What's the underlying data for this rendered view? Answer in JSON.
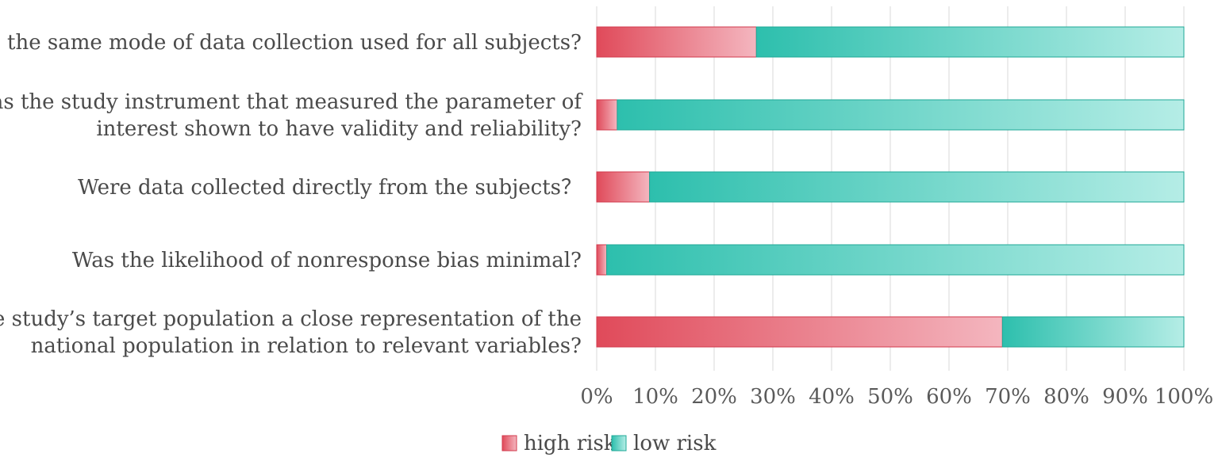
{
  "chart_data": {
    "type": "bar",
    "orientation": "horizontal",
    "stacked": "percent",
    "categories": [
      [
        "Was the same mode of data collection used for all subjects?"
      ],
      [
        "Was the study instrument that measured the parameter of",
        "interest shown to have validity and reliability?"
      ],
      [
        "Were data collected directly from the subjects？"
      ],
      [
        "Was the likelihood of nonresponse bias minimal?"
      ],
      [
        "Was the study’s target population a close representation of the",
        "national population in relation to relevant variables?"
      ]
    ],
    "series": [
      {
        "name": "high risk",
        "color": "#e04a5a",
        "values": [
          27.2,
          3.5,
          9.0,
          1.7,
          69.1
        ]
      },
      {
        "name": "low risk",
        "color": "#2dbfad",
        "values": [
          72.8,
          96.5,
          91.0,
          98.3,
          30.9
        ]
      }
    ],
    "x_ticks": [
      "0%",
      "10%",
      "20%",
      "30%",
      "40%",
      "50%",
      "60%",
      "70%",
      "80%",
      "90%",
      "100%"
    ],
    "xlim": [
      0,
      100
    ],
    "grid": true,
    "legend_position": "bottom-center"
  }
}
